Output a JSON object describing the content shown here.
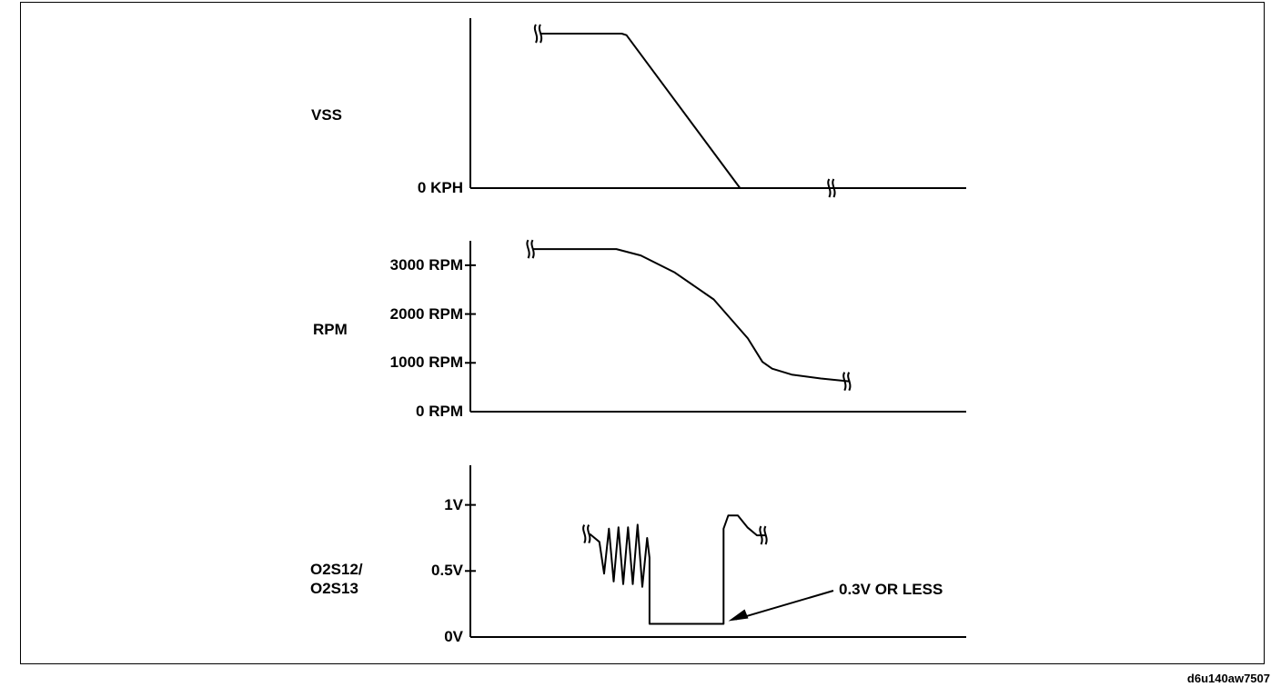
{
  "figure_id": "d6u140aw7507",
  "chart_data": [
    {
      "type": "line",
      "ylabel": "VSS",
      "y_ticks": [
        {
          "label": "0 KPH",
          "value": 0
        }
      ],
      "ylim": [
        0,
        110
      ],
      "xlim": [
        0,
        100
      ],
      "series": [
        {
          "points": [
            [
              15,
              100
            ],
            [
              32,
              100
            ],
            [
              33,
              99
            ],
            [
              57,
              0
            ],
            [
              85,
              0
            ]
          ],
          "break_marks_at": [
            [
              15,
              100
            ],
            [
              77,
              0
            ]
          ]
        }
      ]
    },
    {
      "type": "line",
      "ylabel": "RPM",
      "y_ticks": [
        {
          "label": "3000 RPM",
          "value": 3000
        },
        {
          "label": "2000 RPM",
          "value": 2000
        },
        {
          "label": "1000 RPM",
          "value": 1000
        },
        {
          "label": "0 RPM",
          "value": 0
        }
      ],
      "ylim": [
        0,
        3500
      ],
      "xlim": [
        0,
        100
      ],
      "series": [
        {
          "points": [
            [
              13,
              3330
            ],
            [
              30,
              3330
            ],
            [
              35,
              3200
            ],
            [
              42,
              2850
            ],
            [
              50,
              2300
            ],
            [
              57,
              1500
            ],
            [
              60,
              1020
            ],
            [
              62,
              880
            ],
            [
              66,
              760
            ],
            [
              72,
              680
            ],
            [
              78,
              620
            ]
          ],
          "break_marks_at": [
            [
              13,
              3330
            ],
            [
              78,
              620
            ]
          ]
        }
      ]
    },
    {
      "type": "line",
      "ylabel": "O2S12/\nO2S13",
      "y_ticks": [
        {
          "label": "1V",
          "value": 1.0
        },
        {
          "label": "0.5V",
          "value": 0.5
        },
        {
          "label": "0V",
          "value": 0
        }
      ],
      "ylim": [
        0,
        1.3
      ],
      "xlim": [
        0,
        100
      ],
      "series": [
        {
          "points": [
            [
              25,
              0.78
            ],
            [
              27,
              0.72
            ],
            [
              28,
              0.48
            ],
            [
              29,
              0.82
            ],
            [
              30,
              0.42
            ],
            [
              31,
              0.83
            ],
            [
              32,
              0.4
            ],
            [
              33,
              0.83
            ],
            [
              34,
              0.4
            ],
            [
              35,
              0.85
            ],
            [
              36,
              0.38
            ],
            [
              37,
              0.75
            ],
            [
              37.5,
              0.6
            ],
            [
              37.5,
              0.1
            ],
            [
              53,
              0.1
            ],
            [
              53,
              0.82
            ],
            [
              54,
              0.92
            ],
            [
              56,
              0.92
            ],
            [
              58,
              0.83
            ],
            [
              60,
              0.77
            ],
            [
              62,
              0.77
            ]
          ],
          "break_marks_at": [
            [
              25,
              0.78
            ],
            [
              62,
              0.77
            ]
          ]
        }
      ],
      "annotations": [
        {
          "text": "0.3V OR LESS",
          "points_to": [
            54,
            0.12
          ]
        }
      ]
    }
  ]
}
